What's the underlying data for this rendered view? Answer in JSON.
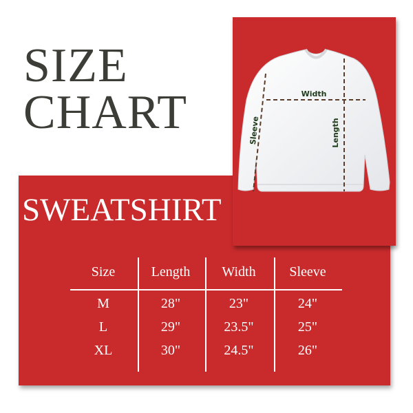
{
  "title": {
    "line1": "SIZE",
    "line2": "CHART"
  },
  "product": "SWEATSHIRT",
  "colors": {
    "card_red": "#c92b2c",
    "title_gray": "#3d3d38",
    "measure_label": "#1f3a1a",
    "measure_line": "#5a3a28"
  },
  "diagram": {
    "width_label": "Width",
    "length_label": "Length",
    "sleeve_label": "Sleeve"
  },
  "table": {
    "headers": [
      "Size",
      "Length",
      "Width",
      "Sleeve"
    ],
    "rows": [
      [
        "M",
        "28\"",
        "23\"",
        "24\""
      ],
      [
        "L",
        "29\"",
        "23.5\"",
        "25\""
      ],
      [
        "XL",
        "30\"",
        "24.5\"",
        "26\""
      ]
    ]
  }
}
